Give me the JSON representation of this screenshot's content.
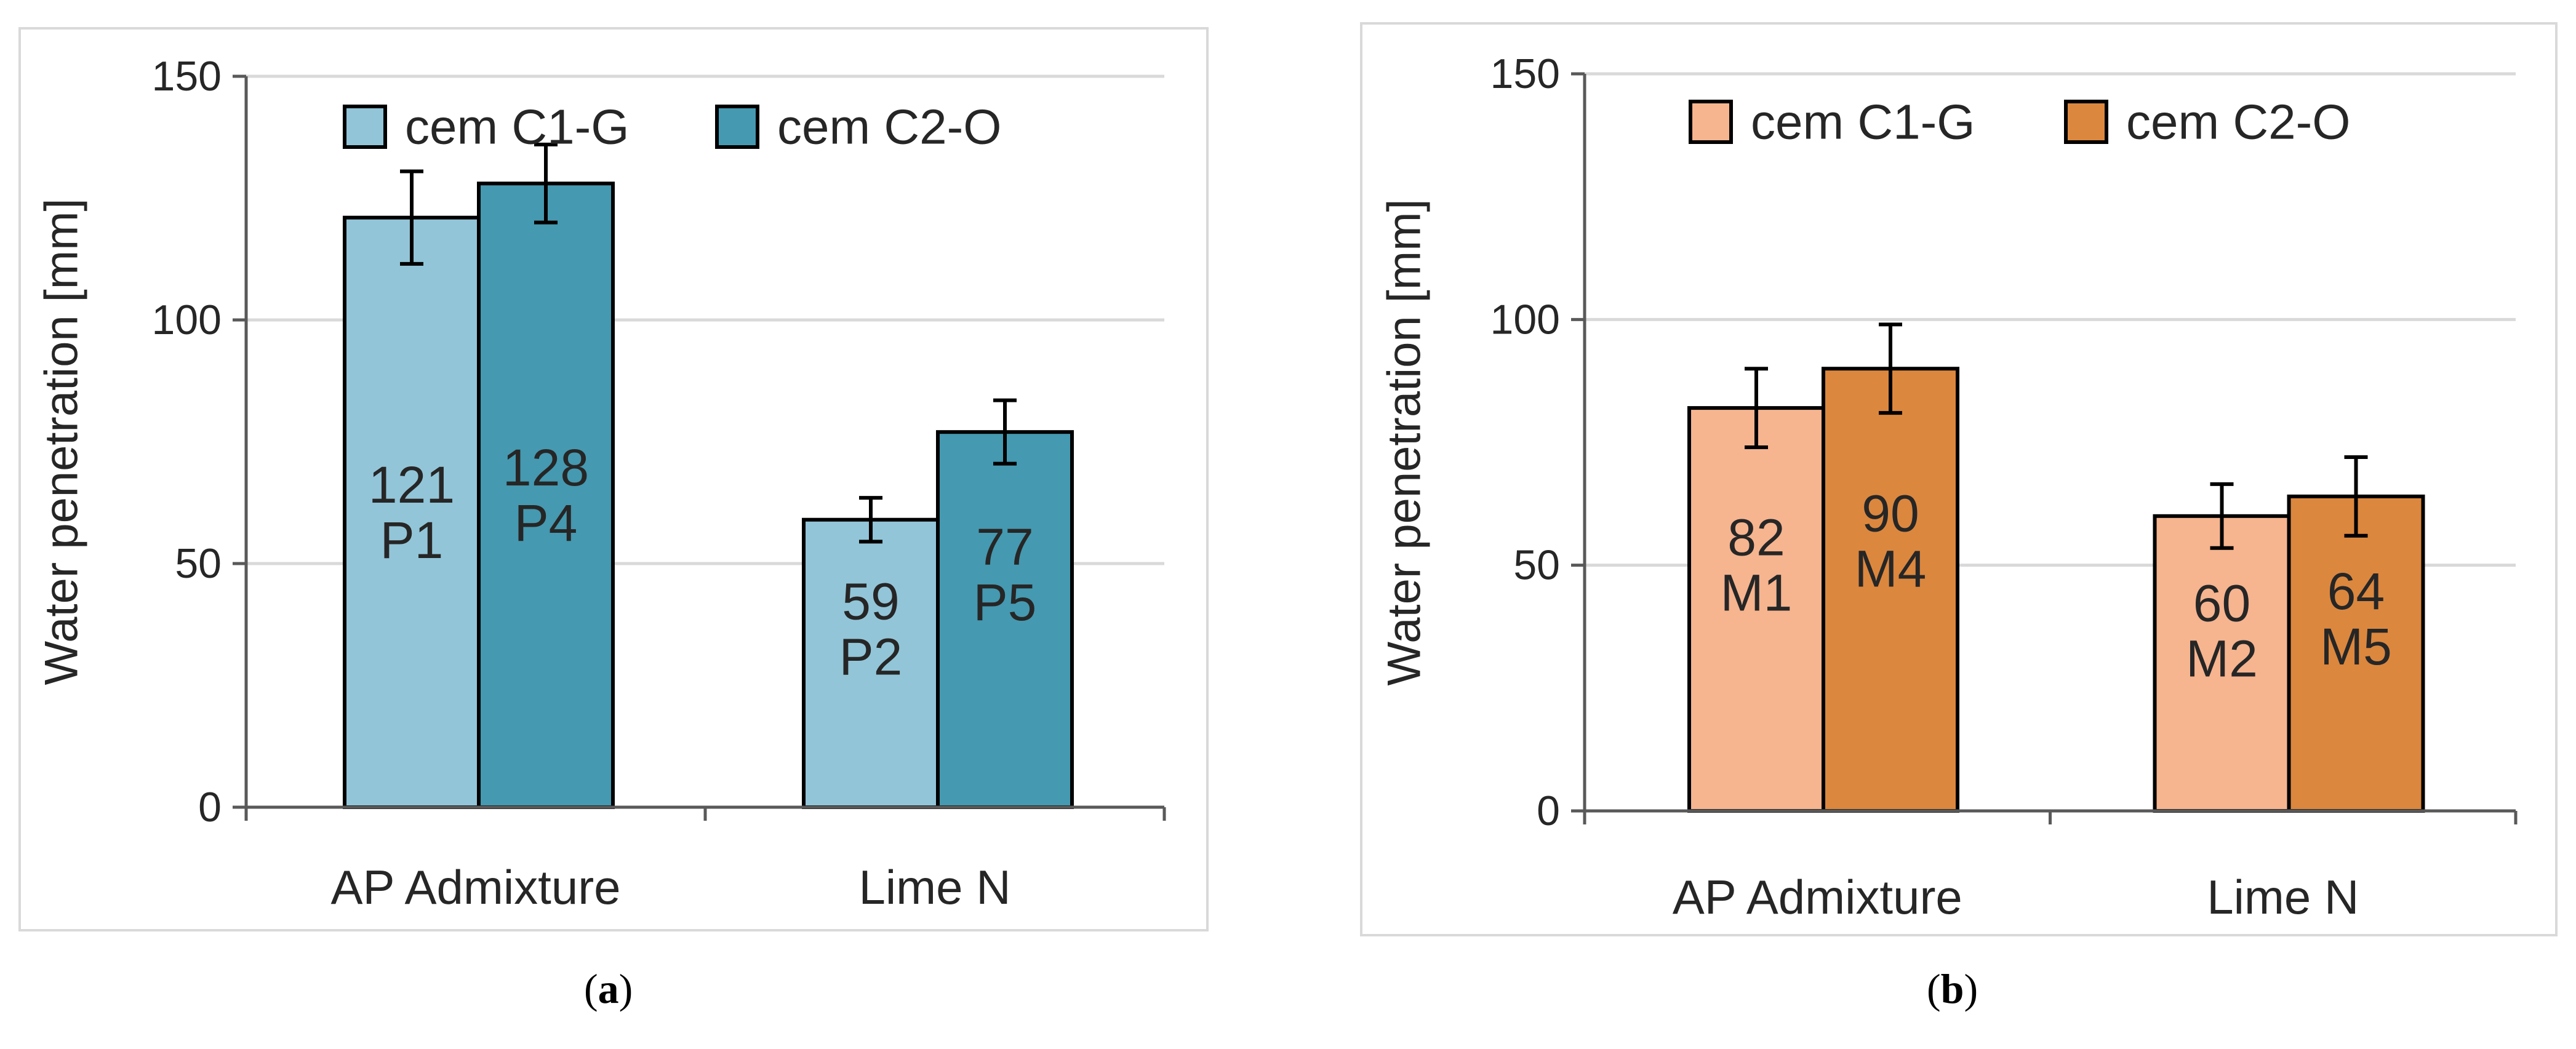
{
  "chart_data": [
    {
      "type": "bar",
      "panel_label": "a",
      "title": "",
      "xlabel": "",
      "ylabel": "Water penetration  [mm]",
      "ylim": [
        0,
        150
      ],
      "yticks": [
        0,
        50,
        100,
        150
      ],
      "grid": true,
      "legend_position": "top-center",
      "categories": [
        "AP Admixture",
        "Lime N"
      ],
      "series": [
        {
          "name": "cem C1-G",
          "color": "#92c5d8",
          "values": [
            121,
            59
          ],
          "errors": [
            9.5,
            4.5
          ],
          "point_labels": [
            "P1",
            "P2"
          ],
          "value_labels": [
            "121",
            "59"
          ]
        },
        {
          "name": "cem C2-O",
          "color": "#4599b0",
          "values": [
            128,
            77
          ],
          "errors": [
            8,
            6.5
          ],
          "point_labels": [
            "P4",
            "P5"
          ],
          "value_labels": [
            "128",
            "77"
          ]
        }
      ]
    },
    {
      "type": "bar",
      "panel_label": "b",
      "title": "",
      "xlabel": "",
      "ylabel": "Water penetration  [mm]",
      "ylim": [
        0,
        150
      ],
      "yticks": [
        0,
        50,
        100,
        150
      ],
      "grid": true,
      "legend_position": "top-center",
      "categories": [
        "AP Admixture",
        "Lime N"
      ],
      "series": [
        {
          "name": "cem C1-G",
          "color": "#f6b48f",
          "values": [
            82,
            60
          ],
          "errors": [
            8,
            6.5
          ],
          "point_labels": [
            "M1",
            "M2"
          ],
          "value_labels": [
            "82",
            "60"
          ]
        },
        {
          "name": "cem C2-O",
          "color": "#dc873e",
          "values": [
            90,
            64
          ],
          "errors": [
            9,
            8
          ],
          "point_labels": [
            "M4",
            "M5"
          ],
          "value_labels": [
            "90",
            "64"
          ]
        }
      ]
    }
  ],
  "captions": [
    {
      "open": "(",
      "label": "a",
      "close": ")"
    },
    {
      "open": "(",
      "label": "b",
      "close": ")"
    }
  ]
}
